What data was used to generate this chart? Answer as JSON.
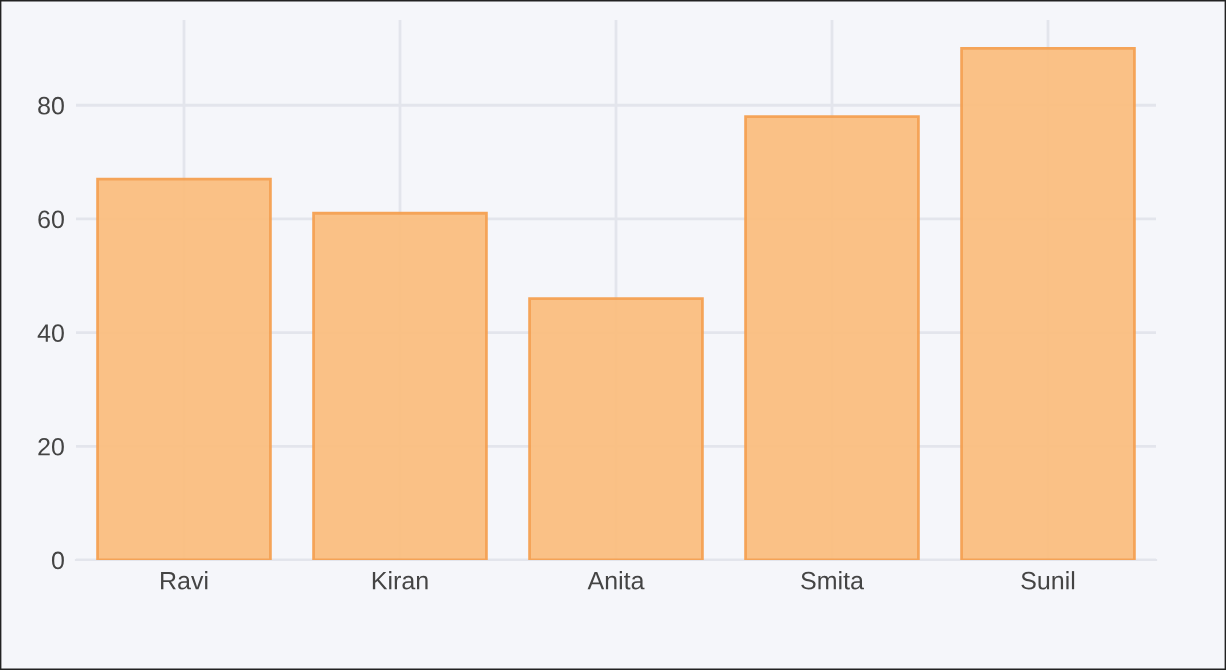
{
  "chart_data": {
    "type": "bar",
    "categories": [
      "Ravi",
      "Kiran",
      "Anita",
      "Smita",
      "Sunil"
    ],
    "values": [
      67,
      61,
      46,
      78,
      90
    ],
    "color": "#fbbf80",
    "ylim": [
      0,
      95
    ],
    "yticks": [
      0,
      20,
      40,
      60,
      80
    ],
    "grid": true
  }
}
